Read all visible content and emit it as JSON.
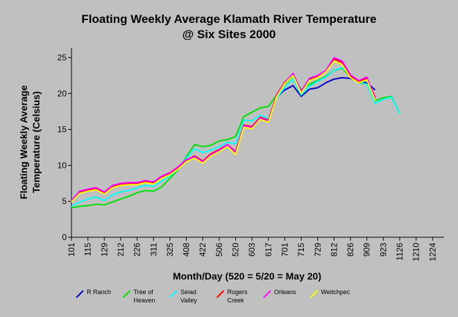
{
  "chart_data": {
    "type": "line",
    "title": [
      "Floating Weekly Average Klamath River Temperature",
      "@ Six Sites 2000"
    ],
    "xlabel": "Month/Day (520 = 5/20 = May 20)",
    "ylabel": [
      "Floating Weekly Average",
      "Temperature (Celsius)"
    ],
    "ylim": [
      0,
      25
    ],
    "yticks": [
      "0",
      "5",
      "10",
      "15",
      "20",
      "25"
    ],
    "categories": [
      "101",
      "115",
      "129",
      "212",
      "226",
      "311",
      "325",
      "408",
      "422",
      "506",
      "520",
      "603",
      "617",
      "701",
      "715",
      "729",
      "812",
      "826",
      "909",
      "923",
      "1126",
      "1210",
      "1224"
    ],
    "grid": false,
    "legend_position": "bottom",
    "series": [
      {
        "name": "R Ranch",
        "label_lines": [
          "R Ranch"
        ],
        "color": "#0000cc",
        "points": [
          [
            12.5,
            19.5
          ],
          [
            13,
            20.5
          ],
          [
            13.5,
            21.1
          ],
          [
            14,
            19.6
          ],
          [
            14.5,
            20.6
          ],
          [
            15,
            20.8
          ],
          [
            15.5,
            21.5
          ],
          [
            16,
            22.0
          ],
          [
            16.5,
            22.2
          ],
          [
            17,
            22.1
          ],
          [
            17.5,
            21.7
          ],
          [
            18,
            21.5
          ],
          [
            18.5,
            20.5
          ]
        ]
      },
      {
        "name": "Tree of Heaven",
        "label_lines": [
          "Tree of",
          "Heaven"
        ],
        "color": "#00e000",
        "points": [
          [
            0,
            4.1
          ],
          [
            0.5,
            4.3
          ],
          [
            1,
            4.4
          ],
          [
            1.5,
            4.6
          ],
          [
            2,
            4.5
          ],
          [
            2.5,
            4.9
          ],
          [
            3,
            5.3
          ],
          [
            3.5,
            5.7
          ],
          [
            4,
            6.2
          ],
          [
            4.5,
            6.5
          ],
          [
            5,
            6.4
          ],
          [
            5.5,
            7.0
          ],
          [
            6,
            8.2
          ],
          [
            6.5,
            9.4
          ],
          [
            7,
            11.2
          ],
          [
            7.5,
            12.9
          ],
          [
            8,
            12.6
          ],
          [
            8.5,
            12.8
          ],
          [
            9,
            13.4
          ],
          [
            9.5,
            13.6
          ],
          [
            10,
            14.0
          ],
          [
            10.5,
            16.8
          ],
          [
            11,
            17.4
          ],
          [
            11.5,
            18.0
          ],
          [
            12,
            18.2
          ],
          [
            12.5,
            19.8
          ],
          [
            13,
            21.3
          ],
          [
            13.5,
            22.4
          ],
          [
            14,
            20.5
          ],
          [
            14.5,
            21.3
          ],
          [
            15,
            21.8
          ],
          [
            15.5,
            22.4
          ],
          [
            16,
            23.2
          ],
          [
            16.5,
            23.5
          ],
          [
            17,
            22.3
          ],
          [
            17.5,
            21.5
          ],
          [
            18,
            21.3
          ],
          [
            18.5,
            19.0
          ],
          [
            19,
            19.4
          ],
          [
            19.5,
            19.6
          ],
          [
            20,
            17.2
          ]
        ]
      },
      {
        "name": "Seiad Valley",
        "label_lines": [
          "Seiad",
          "Valley"
        ],
        "color": "#00ffff",
        "points": [
          [
            0,
            4.3
          ],
          [
            0.5,
            4.9
          ],
          [
            1,
            5.3
          ],
          [
            1.5,
            5.6
          ],
          [
            2,
            5.1
          ],
          [
            2.5,
            5.9
          ],
          [
            3,
            6.3
          ],
          [
            3.5,
            6.5
          ],
          [
            4,
            6.9
          ],
          [
            4.5,
            7.2
          ],
          [
            5,
            7.1
          ],
          [
            5.5,
            7.8
          ],
          [
            6,
            8.5
          ],
          [
            6.5,
            9.5
          ],
          [
            7,
            11.0
          ],
          [
            7.5,
            12.3
          ],
          [
            8,
            11.8
          ],
          [
            8.5,
            12.1
          ],
          [
            9,
            12.6
          ],
          [
            9.5,
            13.2
          ],
          [
            10,
            13.0
          ],
          [
            10.5,
            16.3
          ],
          [
            11,
            16.2
          ],
          [
            11.5,
            17.0
          ],
          [
            12,
            16.5
          ],
          [
            12.5,
            19.4
          ],
          [
            13,
            20.8
          ],
          [
            13.5,
            22.0
          ],
          [
            14,
            19.8
          ],
          [
            14.5,
            21.0
          ],
          [
            15,
            21.7
          ],
          [
            15.5,
            22.3
          ],
          [
            16,
            23.2
          ],
          [
            16.5,
            23.6
          ],
          [
            17,
            22.6
          ],
          [
            17.5,
            21.6
          ],
          [
            18,
            21.3
          ],
          [
            18.5,
            18.6
          ],
          [
            19,
            19.2
          ],
          [
            19.5,
            19.5
          ],
          [
            20,
            17.2
          ]
        ]
      },
      {
        "name": "Rogers Creek",
        "label_lines": [
          "Rogers",
          "Creek"
        ],
        "color": "#ff0000",
        "points": [
          [
            0,
            5.0
          ],
          [
            0.5,
            6.3
          ],
          [
            1,
            6.6
          ],
          [
            1.5,
            6.8
          ],
          [
            2,
            6.2
          ],
          [
            2.5,
            7.1
          ],
          [
            3,
            7.4
          ],
          [
            3.5,
            7.5
          ],
          [
            4,
            7.5
          ],
          [
            4.5,
            7.8
          ],
          [
            5,
            7.6
          ],
          [
            5.5,
            8.4
          ],
          [
            6,
            8.9
          ],
          [
            6.5,
            9.7
          ],
          [
            7,
            10.7
          ],
          [
            7.5,
            11.3
          ],
          [
            8,
            10.6
          ],
          [
            8.5,
            11.6
          ],
          [
            9,
            12.2
          ],
          [
            9.5,
            12.9
          ],
          [
            10,
            11.9
          ],
          [
            10.5,
            15.6
          ],
          [
            11,
            15.4
          ],
          [
            11.5,
            16.7
          ],
          [
            12,
            16.3
          ],
          [
            12.5,
            19.8
          ],
          [
            13,
            21.6
          ],
          [
            13.5,
            22.6
          ],
          [
            14,
            20.2
          ],
          [
            14.5,
            22.0
          ],
          [
            15,
            22.3
          ],
          [
            15.5,
            23.0
          ],
          [
            16,
            24.8
          ],
          [
            16.5,
            24.3
          ],
          [
            17,
            22.4
          ],
          [
            17.5,
            21.7
          ],
          [
            18,
            22.1
          ],
          [
            18.5,
            19.5
          ]
        ]
      },
      {
        "name": "Orleans",
        "label_lines": [
          "Orleans"
        ],
        "color": "#ff00ff",
        "points": [
          [
            0,
            5.1
          ],
          [
            0.5,
            6.4
          ],
          [
            1,
            6.7
          ],
          [
            1.5,
            6.9
          ],
          [
            2,
            6.3
          ],
          [
            2.5,
            7.2
          ],
          [
            3,
            7.5
          ],
          [
            3.5,
            7.6
          ],
          [
            4,
            7.6
          ],
          [
            4.5,
            7.9
          ],
          [
            5,
            7.7
          ],
          [
            5.5,
            8.5
          ],
          [
            6,
            9.0
          ],
          [
            6.5,
            9.8
          ],
          [
            7,
            10.8
          ],
          [
            7.5,
            11.2
          ],
          [
            8,
            10.5
          ],
          [
            8.5,
            11.5
          ],
          [
            9,
            12.1
          ],
          [
            9.5,
            12.9
          ],
          [
            10,
            11.8
          ],
          [
            10.5,
            15.5
          ],
          [
            11,
            15.3
          ],
          [
            11.5,
            16.6
          ],
          [
            12,
            16.2
          ],
          [
            12.5,
            19.7
          ],
          [
            13,
            21.5
          ],
          [
            13.5,
            22.8
          ],
          [
            14,
            20.3
          ],
          [
            14.5,
            22.1
          ],
          [
            15,
            22.5
          ],
          [
            15.5,
            23.2
          ],
          [
            16,
            25.0
          ],
          [
            16.5,
            24.5
          ],
          [
            17,
            22.6
          ],
          [
            17.5,
            21.8
          ],
          [
            18,
            22.3
          ],
          [
            18.5,
            19.3
          ]
        ]
      },
      {
        "name": "Weitchpec",
        "label_lines": [
          "Weitchpec"
        ],
        "color": "#ffff00",
        "points": [
          [
            0,
            4.9
          ],
          [
            0.5,
            6.1
          ],
          [
            1,
            6.4
          ],
          [
            1.5,
            6.6
          ],
          [
            2,
            6.0
          ],
          [
            2.5,
            6.9
          ],
          [
            3,
            7.2
          ],
          [
            3.5,
            7.3
          ],
          [
            4,
            7.3
          ],
          [
            4.5,
            7.6
          ],
          [
            5,
            7.4
          ],
          [
            5.5,
            8.2
          ],
          [
            6,
            8.7
          ],
          [
            6.5,
            9.5
          ],
          [
            7,
            10.5
          ],
          [
            7.5,
            11.0
          ],
          [
            8,
            10.3
          ],
          [
            8.5,
            11.3
          ],
          [
            9,
            11.9
          ],
          [
            9.5,
            12.6
          ],
          [
            10,
            11.5
          ],
          [
            10.5,
            15.3
          ],
          [
            11,
            15.1
          ],
          [
            11.5,
            16.4
          ],
          [
            12,
            16.0
          ],
          [
            12.5,
            19.5
          ],
          [
            13,
            21.4
          ],
          [
            13.5,
            22.5
          ],
          [
            14,
            20.0
          ],
          [
            14.5,
            21.8
          ],
          [
            15,
            22.2
          ],
          [
            15.5,
            23.0
          ],
          [
            16,
            24.5
          ],
          [
            16.5,
            24.0
          ],
          [
            17,
            22.2
          ],
          [
            17.5,
            21.5
          ],
          [
            18,
            21.9
          ],
          [
            18.5,
            19.0
          ]
        ]
      }
    ]
  }
}
